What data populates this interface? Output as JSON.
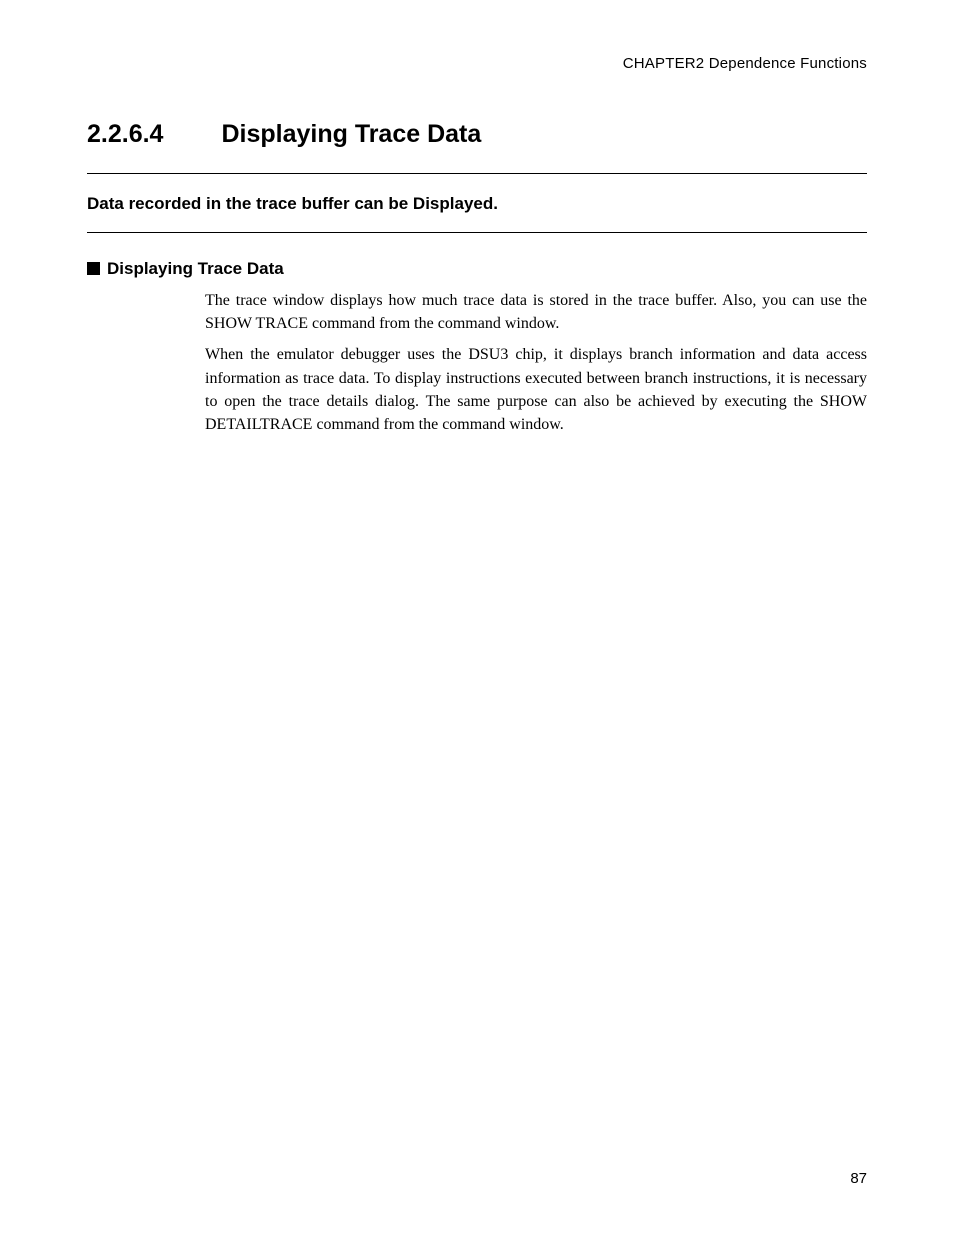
{
  "header": {
    "text": "CHAPTER2  Dependence Functions"
  },
  "heading": {
    "number": "2.2.6.4",
    "title": "Displaying Trace Data"
  },
  "intro": {
    "text": "Data recorded in the trace buffer can be Displayed."
  },
  "subsection": {
    "title": "Displaying Trace Data"
  },
  "body": {
    "p1": "The trace window displays how much trace data is stored in the trace buffer.  Also, you can use the SHOW TRACE command from the command window.",
    "p2": "When the emulator debugger uses the DSU3 chip, it displays branch information and data access information as trace data.  To display instructions executed between branch instructions, it is necessary to open the trace details dialog. The same purpose can also be achieved by executing the SHOW DETAILTRACE command from the command window."
  },
  "footer": {
    "page_number": "87"
  }
}
